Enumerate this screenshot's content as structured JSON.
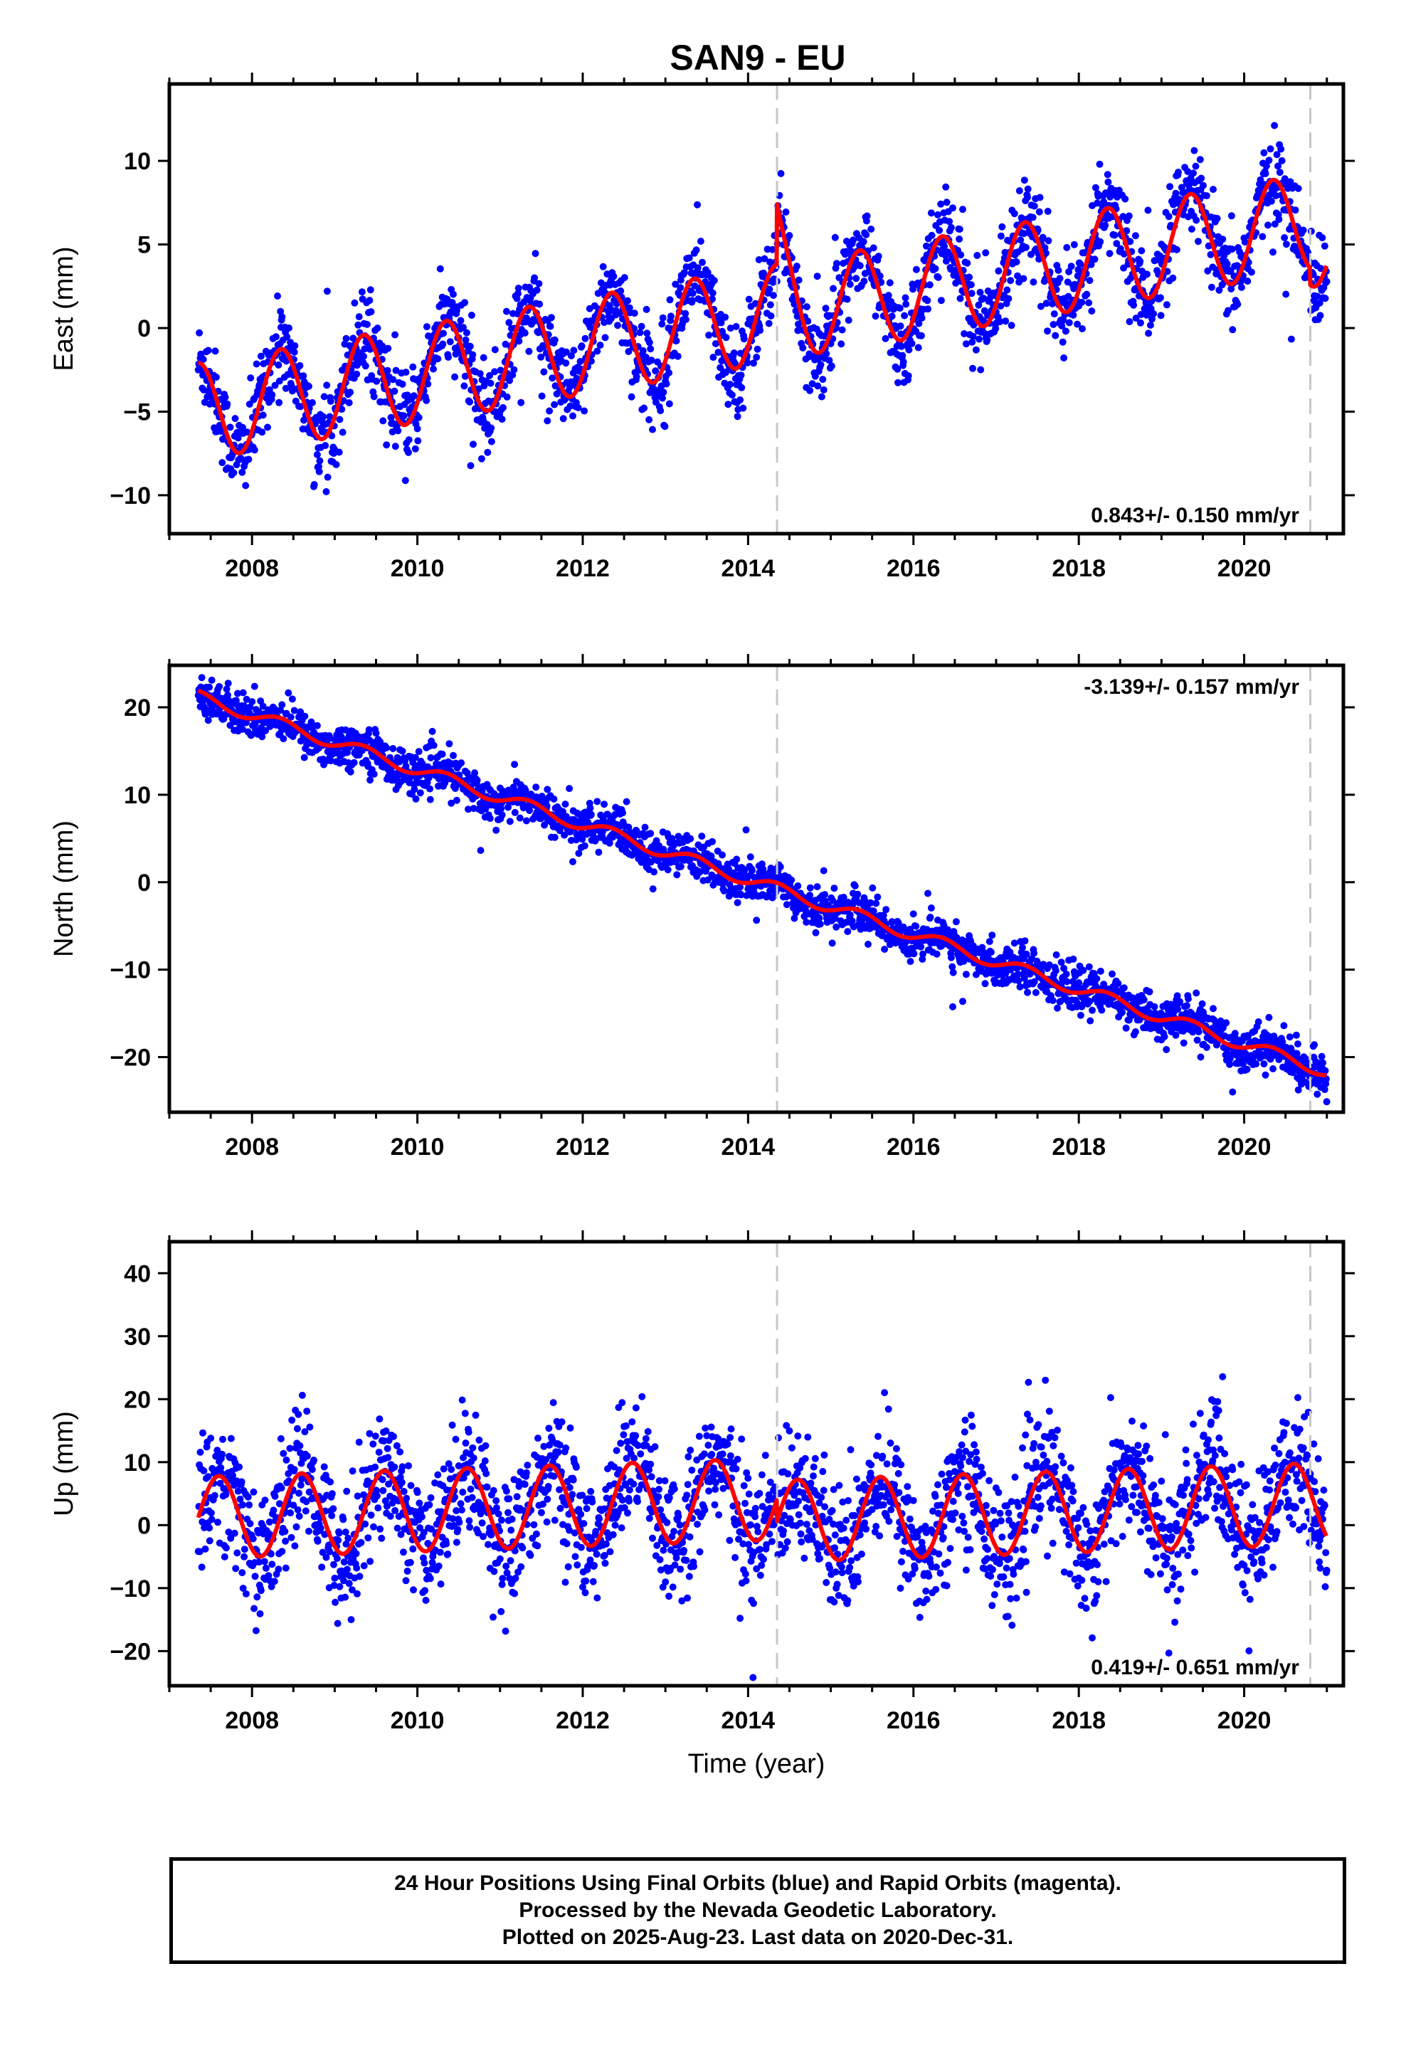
{
  "title": "SAN9 - EU",
  "colors": {
    "points": "#0000ff",
    "model": "#ff0000",
    "breaks": "#c8c8c8",
    "frame": "#000000"
  },
  "caption": {
    "line1": "24 Hour Positions Using Final Orbits (blue) and Rapid Orbits (magenta).",
    "line2": "Processed by the Nevada Geodetic Laboratory.",
    "line3": "Plotted on 2025-Aug-23. Last data on 2020-Dec-31."
  },
  "chart_data": [
    {
      "type": "scatter",
      "component": "east",
      "ylabel": "East (mm)",
      "xlabel": "",
      "xlim": [
        2007.0,
        2021.2
      ],
      "ylim": [
        -12.3,
        14.6
      ],
      "xticks": [
        2008,
        2010,
        2012,
        2014,
        2016,
        2018,
        2020
      ],
      "yticks": [
        -10,
        -5,
        0,
        5,
        10
      ],
      "ytick_labels": [
        "−10",
        "−5",
        "0",
        "5",
        "10"
      ],
      "rate": "0.843+/- 0.150 mm/yr",
      "rate_position": "bottom-right",
      "breaks": [
        2014.35,
        2020.8
      ],
      "data_start": 2007.35,
      "data_end": 2021.0,
      "model": {
        "offset_at_2007_35": -5.0,
        "trend_mm_per_yr": 0.843,
        "annual_amplitude": 2.9,
        "annual_peak_phase": 0.35,
        "step_at_2014_35": 3.6,
        "post_step_decay": 2.4,
        "step_at_2020_8": -1.0
      },
      "scatter_sigma": 1.3,
      "series": [
        {
          "name": "Final Orbits (blue)",
          "role": "points"
        },
        {
          "name": "Model",
          "role": "fit"
        }
      ]
    },
    {
      "type": "scatter",
      "component": "north",
      "ylabel": "North (mm)",
      "xlabel": "",
      "xlim": [
        2007.0,
        2021.2
      ],
      "ylim": [
        -26.3,
        24.8
      ],
      "xticks": [
        2008,
        2010,
        2012,
        2014,
        2016,
        2018,
        2020
      ],
      "yticks": [
        -20,
        -10,
        0,
        10,
        20
      ],
      "ytick_labels": [
        "−20",
        "−10",
        "0",
        "10",
        "20"
      ],
      "rate": "-3.139+/- 0.157 mm/yr",
      "rate_position": "top-right",
      "breaks": [
        2014.35,
        2020.8
      ],
      "data_start": 2007.35,
      "data_end": 2021.0,
      "model": {
        "offset_at_2007_35": 21.2,
        "trend_mm_per_yr": -3.139,
        "annual_amplitude": 0.7,
        "annual_peak_phase": 0.35,
        "step_at_2014_35": 0.0,
        "post_step_decay": 0.0,
        "step_at_2020_8": 0.0
      },
      "scatter_sigma": 1.2,
      "series": [
        {
          "name": "Final Orbits (blue)",
          "role": "points"
        },
        {
          "name": "Model",
          "role": "fit"
        }
      ]
    },
    {
      "type": "scatter",
      "component": "up",
      "ylabel": "Up (mm)",
      "xlabel": "Time (year)",
      "xlim": [
        2007.0,
        2021.2
      ],
      "ylim": [
        -25.5,
        45.0
      ],
      "xticks": [
        2008,
        2010,
        2012,
        2014,
        2016,
        2018,
        2020
      ],
      "yticks": [
        -20,
        -10,
        0,
        10,
        20,
        30,
        40
      ],
      "ytick_labels": [
        "−20",
        "−10",
        "0",
        "10",
        "20",
        "30",
        "40"
      ],
      "rate": "0.419+/- 0.651 mm/yr",
      "rate_position": "bottom-right",
      "breaks": [
        2014.35,
        2020.8
      ],
      "data_start": 2007.35,
      "data_end": 2021.0,
      "model": {
        "offset_at_2007_35": 1.2,
        "trend_mm_per_yr": 0.419,
        "annual_amplitude": 6.5,
        "annual_peak_phase": 0.6,
        "step_at_2014_35": -3.5,
        "post_step_decay": 0.0,
        "step_at_2020_8": 0.0
      },
      "scatter_sigma": 5.0,
      "series": [
        {
          "name": "Final Orbits (blue)",
          "role": "points"
        },
        {
          "name": "Model",
          "role": "fit"
        }
      ]
    }
  ]
}
